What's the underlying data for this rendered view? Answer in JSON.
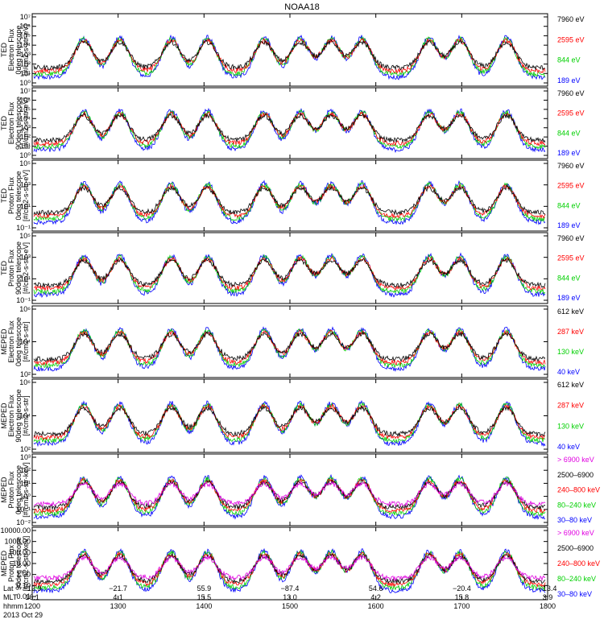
{
  "title": "NOAA18",
  "date_label": "2013 Oct 29",
  "footer": {
    "row_labels": [
      "Lat",
      "MLT",
      "hhmm"
    ],
    "columns": [
      {
        "lat": "−12.9",
        "mlt": "16.1",
        "hhmm": "1200"
      },
      {
        "lat": "−21.7",
        "mlt": "4.1",
        "hhmm": "1300"
      },
      {
        "lat": "55.9",
        "mlt": "15.5",
        "hhmm": "1400"
      },
      {
        "lat": "−87.4",
        "mlt": "13.0",
        "hhmm": "1500"
      },
      {
        "lat": "54.6",
        "mlt": "4.2",
        "hhmm": "1600"
      },
      {
        "lat": "−20.4",
        "mlt": "15.8",
        "hhmm": "1700"
      },
      {
        "lat": "−13.4",
        "mlt": "3.9",
        "hhmm": "1800"
      }
    ]
  },
  "chart_data": [
    {
      "type": "line",
      "ylabel": [
        "TED",
        "Electron Flux",
        "0deg telescope",
        "[#/cm2-s-str-eV]"
      ],
      "yscale": "log",
      "ytick_labels": [
        "10⁰",
        "10¹",
        "10²",
        "10³",
        "10⁴",
        "10⁵",
        "10⁶",
        "10⁷"
      ],
      "legend": [
        {
          "name": "7960 eV",
          "color": "#000000"
        },
        {
          "name": "2595 eV",
          "color": "#ff0000"
        },
        {
          "name": "844 eV",
          "color": "#00d000"
        },
        {
          "name": "189 eV",
          "color": "#0000ff"
        }
      ],
      "xlim": [
        1200,
        1800
      ]
    },
    {
      "type": "line",
      "ylabel": [
        "TED",
        "Electron Flux",
        "90deg telescope",
        "[#/cm2-s-str-eV]"
      ],
      "yscale": "log",
      "ytick_labels": [
        "10⁰",
        "10¹",
        "10²",
        "10³",
        "10⁴",
        "10⁵",
        "10⁶",
        "10⁷"
      ],
      "legend": [
        {
          "name": "7960 eV",
          "color": "#000000"
        },
        {
          "name": "2595 eV",
          "color": "#ff0000"
        },
        {
          "name": "844 eV",
          "color": "#00d000"
        },
        {
          "name": "189 eV",
          "color": "#0000ff"
        }
      ],
      "xlim": [
        1200,
        1800
      ]
    },
    {
      "type": "line",
      "ylabel": [
        "TED",
        "Proton Flux",
        "0deg telescope",
        "[#/cm2-s-str-eV]"
      ],
      "yscale": "log",
      "ytick_labels": [
        "10⁻¹",
        "10¹",
        "10³",
        "10⁵"
      ],
      "legend": [
        {
          "name": "7960 eV",
          "color": "#000000"
        },
        {
          "name": "2595 eV",
          "color": "#ff0000"
        },
        {
          "name": "844 eV",
          "color": "#00d000"
        },
        {
          "name": "189 eV",
          "color": "#0000ff"
        }
      ],
      "xlim": [
        1200,
        1800
      ]
    },
    {
      "type": "line",
      "ylabel": [
        "TED",
        "Proton Flux",
        "90deg telescope",
        "[#/cm2-s-str-eV]"
      ],
      "yscale": "log",
      "ytick_labels": [
        "10⁻¹",
        "10¹",
        "10³",
        "10⁵"
      ],
      "legend": [
        {
          "name": "7960 eV",
          "color": "#000000"
        },
        {
          "name": "2595 eV",
          "color": "#ff0000"
        },
        {
          "name": "844 eV",
          "color": "#00d000"
        },
        {
          "name": "189 eV",
          "color": "#0000ff"
        }
      ],
      "xlim": [
        1200,
        1800
      ]
    },
    {
      "type": "line",
      "ylabel": [
        "MEPED",
        "Electron Flux",
        "0deg telescope",
        "[#/cm2-s-str]"
      ],
      "yscale": "log",
      "ytick_labels": [
        "10²",
        "10⁴",
        "10⁶"
      ],
      "legend": [
        {
          "name": "612 keV",
          "color": "#000000"
        },
        {
          "name": "287 keV",
          "color": "#ff0000"
        },
        {
          "name": "130 keV",
          "color": "#00d000"
        },
        {
          "name": "40 keV",
          "color": "#0000ff"
        }
      ],
      "xlim": [
        1200,
        1800
      ]
    },
    {
      "type": "line",
      "ylabel": [
        "MEPED",
        "Electron Flux",
        "90deg telescope",
        "[#/cm2-s-str]"
      ],
      "yscale": "log",
      "ytick_labels": [
        "10²",
        "10⁴",
        "10⁶"
      ],
      "legend": [
        {
          "name": "612 keV",
          "color": "#000000"
        },
        {
          "name": "287 keV",
          "color": "#ff0000"
        },
        {
          "name": "130 keV",
          "color": "#00d000"
        },
        {
          "name": "40 keV",
          "color": "#0000ff"
        }
      ],
      "xlim": [
        1200,
        1800
      ]
    },
    {
      "type": "line",
      "ylabel": [
        "MEPED",
        "Proton Flux",
        "0deg telescope",
        "[#/cm2-s-str-keV]"
      ],
      "yscale": "log",
      "ytick_labels": [
        "10⁻²",
        "10⁻¹",
        "10⁰",
        "10¹",
        "10²",
        "10³"
      ],
      "legend": [
        {
          "name": "> 6900 keV",
          "color": "#e000e0"
        },
        {
          "name": "2500–6900",
          "color": "#000000"
        },
        {
          "name": "240–800 keV",
          "color": "#ff0000"
        },
        {
          "name": "80–240 keV",
          "color": "#00d000"
        },
        {
          "name": "30–80 keV",
          "color": "#0000ff"
        }
      ],
      "xlim": [
        1200,
        1800
      ]
    },
    {
      "type": "line",
      "ylabel": [
        "MEPED",
        "Proton Flux",
        "90deg telescope",
        "[#/cm2-s-str-keV]"
      ],
      "yscale": "log",
      "ytick_labels": [
        "0.01",
        "0.10",
        "1.00",
        "10.00",
        "100.00",
        "1000.00",
        "10000.00"
      ],
      "legend": [
        {
          "name": "> 6900 keV",
          "color": "#e000e0"
        },
        {
          "name": "2500–6900",
          "color": "#000000"
        },
        {
          "name": "240–800 keV",
          "color": "#ff0000"
        },
        {
          "name": "80–240 keV",
          "color": "#00d000"
        },
        {
          "name": "30–80 keV",
          "color": "#0000ff"
        }
      ],
      "xlim": [
        1200,
        1800
      ]
    }
  ]
}
